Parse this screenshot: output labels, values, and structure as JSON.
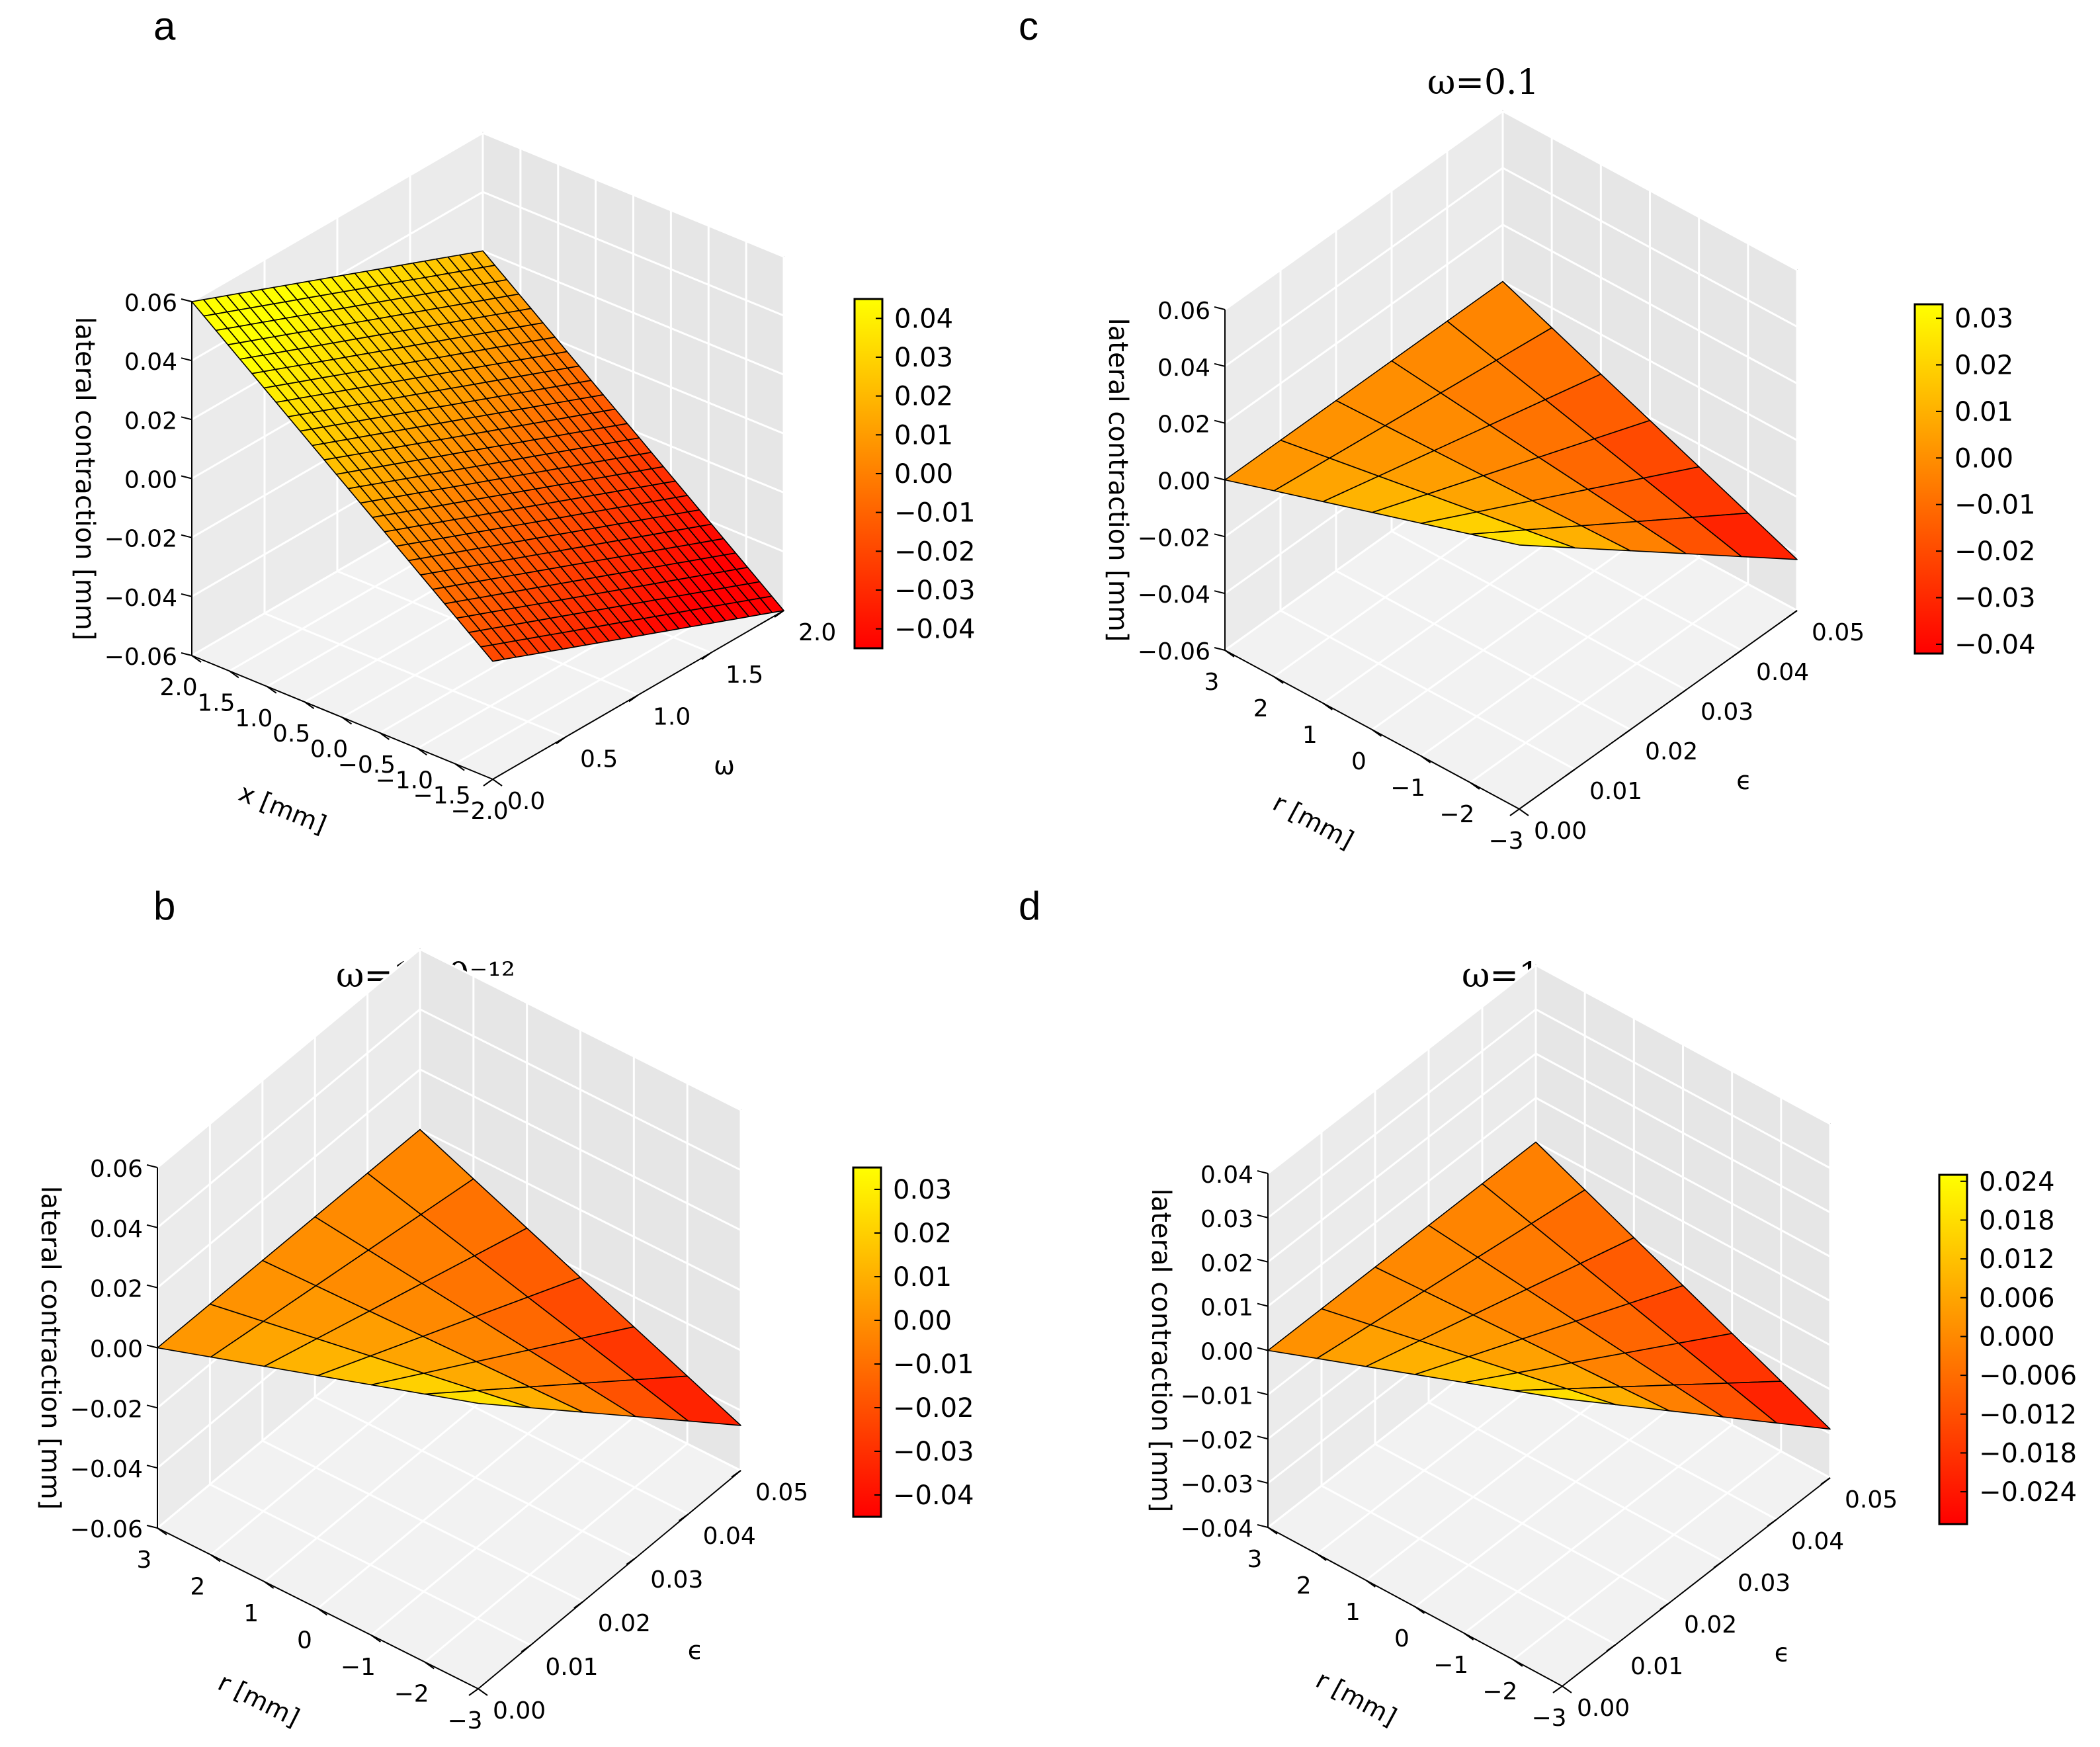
{
  "figure": {
    "panels": [
      {
        "letter": "a",
        "title": ""
      },
      {
        "letter": "b",
        "title": "ω=1·10⁻¹²"
      },
      {
        "letter": "c",
        "title": "ω=0.1"
      },
      {
        "letter": "d",
        "title": "ω=1"
      }
    ]
  },
  "chart_data": [
    {
      "panel": "a",
      "type": "surface",
      "title": "",
      "xlabel": "x [mm]",
      "ylabel": "ω",
      "zlabel": "lateral contraction [mm]",
      "x_ticks": [
        "−2.0",
        "−1.5",
        "−1.0",
        "−0.5",
        "0.0",
        "0.5",
        "1.0",
        "1.5",
        "2.0"
      ],
      "y_ticks": [
        "0.0",
        "0.5",
        "1.0",
        "1.5",
        "2.0"
      ],
      "z_ticks": [
        "−0.06",
        "−0.04",
        "−0.02",
        "0.00",
        "0.02",
        "0.04",
        "0.06"
      ],
      "xlim": [
        -2.0,
        2.0
      ],
      "ylim": [
        0.0,
        2.0
      ],
      "zlim": [
        -0.06,
        0.06
      ],
      "grid": true,
      "colormap": "autumn",
      "colorbar": {
        "ticks": [
          "−0.04",
          "−0.03",
          "−0.02",
          "−0.01",
          "0.00",
          "0.01",
          "0.02",
          "0.03",
          "0.04"
        ],
        "range": [
          -0.045,
          0.045
        ]
      },
      "surface": {
        "x": [
          -2.0,
          2.0
        ],
        "y": [
          0.0,
          2.0
        ],
        "z": [
          [
            0.06,
            0.02
          ],
          [
            -0.02,
            -0.06
          ]
        ],
        "grid_size": [
          26,
          26
        ]
      }
    },
    {
      "panel": "b",
      "type": "surface",
      "title": "ω=1·10⁻¹²",
      "xlabel": "r [mm]",
      "ylabel": "ϵ",
      "zlabel": "lateral contraction [mm]",
      "x_ticks": [
        "−3",
        "−2",
        "−1",
        "0",
        "1",
        "2",
        "3"
      ],
      "y_ticks": [
        "0.00",
        "0.01",
        "0.02",
        "0.03",
        "0.04",
        "0.05"
      ],
      "z_ticks": [
        "−0.06",
        "−0.04",
        "−0.02",
        "0.00",
        "0.02",
        "0.04",
        "0.06"
      ],
      "xlim": [
        -3,
        3
      ],
      "ylim": [
        0.0,
        0.05
      ],
      "zlim": [
        -0.06,
        0.06
      ],
      "grid": true,
      "colormap": "autumn",
      "colorbar": {
        "ticks": [
          "−0.04",
          "−0.03",
          "−0.02",
          "−0.01",
          "0.00",
          "0.01",
          "0.02",
          "0.03"
        ],
        "range": [
          -0.045,
          0.035
        ]
      },
      "surface": {
        "x": [
          -3,
          3
        ],
        "y": [
          0.0,
          0.05
        ],
        "z": [
          [
            0.0,
            0.0
          ],
          [
            0.035,
            -0.045
          ]
        ],
        "grid_size": [
          7,
          6
        ]
      }
    },
    {
      "panel": "c",
      "type": "surface",
      "title": "ω=0.1",
      "xlabel": "r [mm]",
      "ylabel": "ϵ",
      "zlabel": "lateral contraction [mm]",
      "x_ticks": [
        "−3",
        "−2",
        "−1",
        "0",
        "1",
        "2",
        "3"
      ],
      "y_ticks": [
        "0.00",
        "0.01",
        "0.02",
        "0.03",
        "0.04",
        "0.05"
      ],
      "z_ticks": [
        "−0.06",
        "−0.04",
        "−0.02",
        "0.00",
        "0.02",
        "0.04",
        "0.06"
      ],
      "xlim": [
        -3,
        3
      ],
      "ylim": [
        0.0,
        0.05
      ],
      "zlim": [
        -0.06,
        0.06
      ],
      "grid": true,
      "colormap": "autumn",
      "colorbar": {
        "ticks": [
          "−0.04",
          "−0.03",
          "−0.02",
          "−0.01",
          "0.00",
          "0.01",
          "0.02",
          "0.03"
        ],
        "range": [
          -0.042,
          0.033
        ]
      },
      "surface": {
        "x": [
          -3,
          3
        ],
        "y": [
          0.0,
          0.05
        ],
        "z": [
          [
            0.0,
            0.0
          ],
          [
            0.033,
            -0.042
          ]
        ],
        "grid_size": [
          7,
          6
        ]
      }
    },
    {
      "panel": "d",
      "type": "surface",
      "title": "ω=1",
      "xlabel": "r [mm]",
      "ylabel": "ϵ",
      "zlabel": "lateral contraction [mm]",
      "x_ticks": [
        "−3",
        "−2",
        "−1",
        "0",
        "1",
        "2",
        "3"
      ],
      "y_ticks": [
        "0.00",
        "0.01",
        "0.02",
        "0.03",
        "0.04",
        "0.05"
      ],
      "z_ticks": [
        "−0.04",
        "−0.03",
        "−0.02",
        "−0.01",
        "0.00",
        "0.01",
        "0.02",
        "0.03",
        "0.04"
      ],
      "xlim": [
        -3,
        3
      ],
      "ylim": [
        0.0,
        0.05
      ],
      "zlim": [
        -0.04,
        0.04
      ],
      "grid": true,
      "colormap": "autumn",
      "colorbar": {
        "ticks": [
          "−0.024",
          "−0.018",
          "−0.012",
          "−0.006",
          "0.000",
          "0.006",
          "0.012",
          "0.018",
          "0.024"
        ],
        "range": [
          -0.029,
          0.025
        ]
      },
      "surface": {
        "x": [
          -3,
          3
        ],
        "y": [
          0.0,
          0.05
        ],
        "z": [
          [
            0.0,
            0.0
          ],
          [
            0.025,
            -0.029
          ]
        ],
        "grid_size": [
          7,
          6
        ]
      }
    }
  ]
}
